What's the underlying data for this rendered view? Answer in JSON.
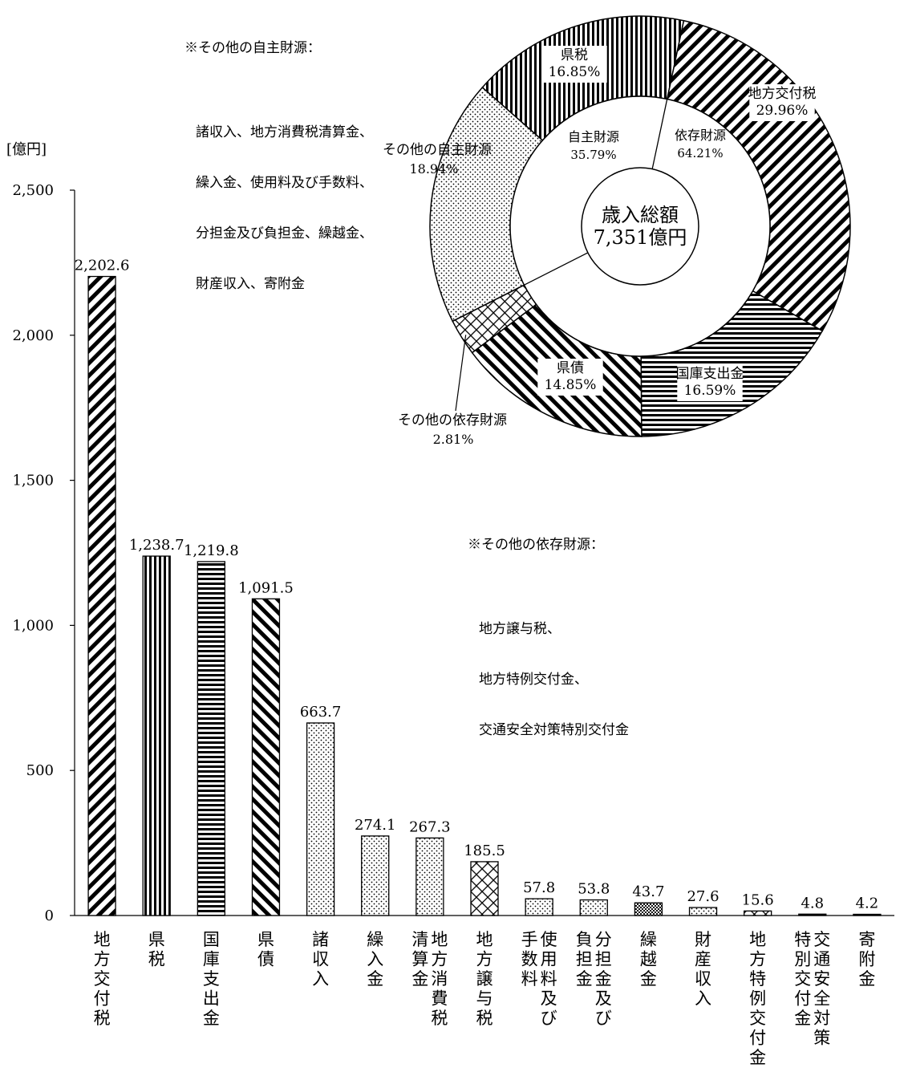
{
  "notes": {
    "own_other": {
      "title": "※その他の自主財源：",
      "lines": [
        "諸収入、地方消費税清算金、",
        "繰入金、使用料及び手数料、",
        "分担金及び負担金、繰越金、",
        "財産収入、寄附金"
      ]
    },
    "dep_other": {
      "title": "※その他の依存財源：",
      "lines": [
        "地方譲与税、",
        "地方特例交付金、",
        "交通安全対策特別交付金"
      ]
    }
  },
  "chart_data": [
    {
      "type": "bar",
      "ylabel": "[億円]",
      "ylim": [
        0,
        2500
      ],
      "yticks": [
        0,
        500,
        1000,
        1500,
        2000,
        2500
      ],
      "ytick_labels": [
        "0",
        "500",
        "1,000",
        "1,500",
        "2,000",
        "2,500"
      ],
      "categories": [
        {
          "lines": [
            "地方交付税"
          ]
        },
        {
          "lines": [
            "県税"
          ]
        },
        {
          "lines": [
            "国庫支出金"
          ]
        },
        {
          "lines": [
            "県債"
          ]
        },
        {
          "lines": [
            "諸収入"
          ]
        },
        {
          "lines": [
            "繰入金"
          ]
        },
        {
          "lines": [
            "地方消費税",
            "清算金"
          ]
        },
        {
          "lines": [
            "地方譲与税"
          ]
        },
        {
          "lines": [
            "使用料及び",
            "手数料"
          ]
        },
        {
          "lines": [
            "分担金及び",
            "負担金"
          ]
        },
        {
          "lines": [
            "繰越金"
          ]
        },
        {
          "lines": [
            "財産収入"
          ]
        },
        {
          "lines": [
            "地方特例交付金"
          ]
        },
        {
          "lines": [
            "交通安全対策",
            "特別交付金"
          ]
        },
        {
          "lines": [
            "寄附金"
          ]
        }
      ],
      "values": [
        2202.6,
        1238.7,
        1219.8,
        1091.5,
        663.7,
        274.1,
        267.3,
        185.5,
        57.8,
        53.8,
        43.7,
        27.6,
        15.6,
        4.8,
        4.2
      ],
      "value_labels": [
        "2,202.6",
        "1,238.7",
        "1,219.8",
        "1,091.5",
        "663.7",
        "274.1",
        "267.3",
        "185.5",
        "57.8",
        "53.8",
        "43.7",
        "27.6",
        "15.6",
        "4.8",
        "4.2"
      ],
      "patterns": [
        "diag-fwd",
        "vert",
        "horiz",
        "diag-back",
        "dots",
        "dots",
        "dots",
        "cross",
        "dots",
        "dots",
        "dots-dense",
        "dots",
        "cross",
        "solid",
        "solid"
      ]
    },
    {
      "type": "pie",
      "center_label": [
        "歳入総額",
        "7,351億円"
      ],
      "inner": [
        {
          "label": "自主財源",
          "value_label": "35.79%",
          "value": 35.79
        },
        {
          "label": "依存財源",
          "value_label": "64.21%",
          "value": 64.21
        }
      ],
      "slices": [
        {
          "label": "県税",
          "value_label": "16.85%",
          "value": 16.85,
          "pattern": "vert"
        },
        {
          "label": "地方交付税",
          "value_label": "29.96%",
          "value": 29.96,
          "pattern": "diag-fwd"
        },
        {
          "label": "国庫支出金",
          "value_label": "16.59%",
          "value": 16.59,
          "pattern": "horiz"
        },
        {
          "label": "県債",
          "value_label": "14.85%",
          "value": 14.85,
          "pattern": "diag-back"
        },
        {
          "label": "その他の依存財源",
          "value_label": "2.81%",
          "value": 2.81,
          "pattern": "cross"
        },
        {
          "label": "その他の自主財源",
          "value_label": "18.94%",
          "value": 18.94,
          "pattern": "dots"
        }
      ]
    }
  ]
}
